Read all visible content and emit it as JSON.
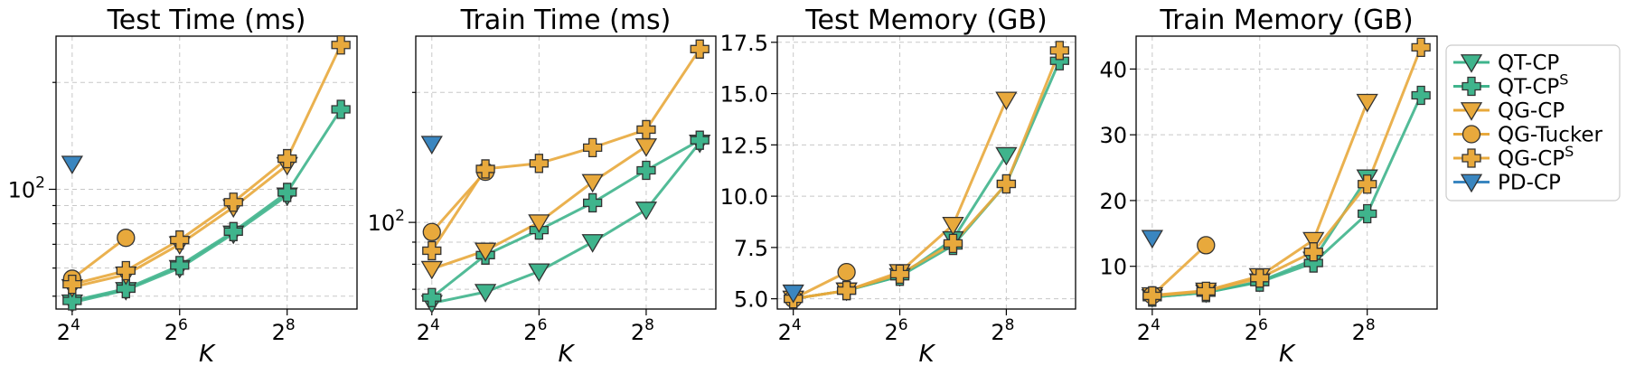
{
  "figure": {
    "colors": {
      "QT-CP": "#3fb48c",
      "QT-CP^S": "#3fb48c",
      "QG-CP": "#e8a93c",
      "QG-Tucker": "#e8a93c",
      "QG-CP^S": "#e8a93c",
      "PD-CP": "#3a86c0"
    },
    "legend": {
      "placement": "right",
      "entries": [
        {
          "key": "QT-CP",
          "base": "QT-CP",
          "sup": "",
          "marker": "triangle-down"
        },
        {
          "key": "QT-CP^S",
          "base": "QT-CP",
          "sup": "S",
          "marker": "plus"
        },
        {
          "key": "QG-CP",
          "base": "QG-CP",
          "sup": "",
          "marker": "triangle-down"
        },
        {
          "key": "QG-Tucker",
          "base": "QG-Tucker",
          "sup": "",
          "marker": "circle"
        },
        {
          "key": "QG-CP^S",
          "base": "QG-CP",
          "sup": "S",
          "marker": "plus"
        },
        {
          "key": "PD-CP",
          "base": "PD-CP",
          "sup": "",
          "marker": "triangle-down"
        }
      ]
    }
  },
  "chart_data": [
    {
      "type": "line",
      "title": "Test Time (ms)",
      "xlabel": "K",
      "ylabel": "",
      "yscale": "log",
      "ylim": [
        46,
        270
      ],
      "xticks": [
        {
          "base": "2",
          "exp": "4"
        },
        {
          "base": "2",
          "exp": "6"
        },
        {
          "base": "2",
          "exp": "8"
        }
      ],
      "yticks": [
        {
          "base": "10",
          "exp": "2",
          "value": 100
        }
      ],
      "grid": true,
      "series": [
        {
          "name": "QT-CP",
          "marker": "triangle-down",
          "x": [
            16,
            32,
            64,
            128,
            256
          ],
          "y": [
            48,
            52,
            60,
            75,
            96
          ]
        },
        {
          "name": "QT-CP^S",
          "marker": "plus",
          "x": [
            16,
            32,
            64,
            128,
            256,
            512
          ],
          "y": [
            48.5,
            52.5,
            61,
            76,
            98,
            168
          ]
        },
        {
          "name": "QG-CP",
          "marker": "triangle-down",
          "x": [
            16,
            32,
            64,
            128,
            256
          ],
          "y": [
            53,
            57.5,
            70,
            89,
            117
          ]
        },
        {
          "name": "QG-Tucker",
          "marker": "circle",
          "x": [
            16,
            32
          ],
          "y": [
            56,
            73
          ]
        },
        {
          "name": "QG-CP^S",
          "marker": "plus",
          "x": [
            16,
            32,
            64,
            128,
            256,
            512
          ],
          "y": [
            54,
            59,
            72,
            92,
            122,
            255
          ]
        },
        {
          "name": "PD-CP",
          "marker": "triangle-down",
          "x": [
            16
          ],
          "y": [
            118
          ]
        }
      ]
    },
    {
      "type": "line",
      "title": "Train Time (ms)",
      "xlabel": "K",
      "ylabel": "",
      "yscale": "log",
      "ylim": [
        63,
        270
      ],
      "xticks": [
        {
          "base": "2",
          "exp": "4"
        },
        {
          "base": "2",
          "exp": "6"
        },
        {
          "base": "2",
          "exp": "8"
        }
      ],
      "yticks": [
        {
          "base": "10",
          "exp": "2",
          "value": 100
        }
      ],
      "grid": true,
      "series": [
        {
          "name": "QT-CP",
          "marker": "triangle-down",
          "x": [
            16,
            32,
            64,
            128,
            256,
            512
          ],
          "y": [
            65,
            69,
            77,
            90,
            107,
            153
          ]
        },
        {
          "name": "QT-CP^S",
          "marker": "plus",
          "x": [
            16,
            32,
            64,
            128,
            256,
            512
          ],
          "y": [
            67,
            84,
            96,
            111,
            132,
            155
          ]
        },
        {
          "name": "QG-CP",
          "marker": "triangle-down",
          "x": [
            16,
            32,
            64,
            128,
            256
          ],
          "y": [
            78,
            86,
            100,
            124,
            150
          ]
        },
        {
          "name": "QG-Tucker",
          "marker": "circle",
          "x": [
            16,
            32
          ],
          "y": [
            95,
            131
          ]
        },
        {
          "name": "QG-CP^S",
          "marker": "plus",
          "x": [
            16,
            32,
            64,
            128,
            256,
            512
          ],
          "y": [
            86,
            133,
            137,
            149,
            164,
            252
          ]
        },
        {
          "name": "PD-CP",
          "marker": "triangle-down",
          "x": [
            16
          ],
          "y": [
            152
          ]
        }
      ]
    },
    {
      "type": "line",
      "title": "Test Memory (GB)",
      "xlabel": "K",
      "ylabel": "",
      "yscale": "linear",
      "ylim": [
        4.5,
        17.8
      ],
      "xticks": [
        {
          "base": "2",
          "exp": "4"
        },
        {
          "base": "2",
          "exp": "6"
        },
        {
          "base": "2",
          "exp": "8"
        }
      ],
      "yticks": [
        {
          "label": "5.0",
          "value": 5.0
        },
        {
          "label": "7.5",
          "value": 7.5
        },
        {
          "label": "10.0",
          "value": 10.0
        },
        {
          "label": "12.5",
          "value": 12.5
        },
        {
          "label": "15.0",
          "value": 15.0
        },
        {
          "label": "17.5",
          "value": 17.5
        }
      ],
      "grid": true,
      "series": [
        {
          "name": "QT-CP",
          "marker": "triangle-down",
          "x": [
            16,
            32,
            64,
            128,
            256
          ],
          "y": [
            5.0,
            5.4,
            6.1,
            7.9,
            12.0
          ]
        },
        {
          "name": "QT-CP^S",
          "marker": "plus",
          "x": [
            16,
            32,
            64,
            128,
            256,
            512
          ],
          "y": [
            5.0,
            5.4,
            6.1,
            7.6,
            10.6,
            16.6
          ]
        },
        {
          "name": "QG-CP",
          "marker": "triangle-down",
          "x": [
            16,
            32,
            64,
            128,
            256
          ],
          "y": [
            5.0,
            5.4,
            6.3,
            8.6,
            14.7
          ]
        },
        {
          "name": "QG-Tucker",
          "marker": "circle",
          "x": [
            16,
            32
          ],
          "y": [
            5.0,
            6.3
          ]
        },
        {
          "name": "QG-CP^S",
          "marker": "plus",
          "x": [
            16,
            32,
            64,
            128,
            256,
            512
          ],
          "y": [
            5.0,
            5.4,
            6.2,
            7.7,
            10.6,
            17.1
          ]
        },
        {
          "name": "PD-CP",
          "marker": "triangle-down",
          "x": [
            16
          ],
          "y": [
            5.3
          ]
        }
      ]
    },
    {
      "type": "line",
      "title": "Train Memory (GB)",
      "xlabel": "K",
      "ylabel": "",
      "yscale": "linear",
      "ylim": [
        3.5,
        45
      ],
      "xticks": [
        {
          "base": "2",
          "exp": "4"
        },
        {
          "base": "2",
          "exp": "6"
        },
        {
          "base": "2",
          "exp": "8"
        }
      ],
      "yticks": [
        {
          "label": "10",
          "value": 10
        },
        {
          "label": "20",
          "value": 20
        },
        {
          "label": "30",
          "value": 30
        },
        {
          "label": "40",
          "value": 40
        }
      ],
      "grid": true,
      "series": [
        {
          "name": "QT-CP",
          "marker": "triangle-down",
          "x": [
            16,
            32,
            64,
            128,
            256
          ],
          "y": [
            5.3,
            6.0,
            7.7,
            11.0,
            23.5
          ]
        },
        {
          "name": "QT-CP^S",
          "marker": "plus",
          "x": [
            16,
            32,
            64,
            128,
            256,
            512
          ],
          "y": [
            5.3,
            6.0,
            7.6,
            10.5,
            18.0,
            36.0
          ]
        },
        {
          "name": "QG-CP",
          "marker": "triangle-down",
          "x": [
            16,
            32,
            64,
            128,
            256
          ],
          "y": [
            5.6,
            6.3,
            8.5,
            14.0,
            35.0
          ]
        },
        {
          "name": "QG-Tucker",
          "marker": "circle",
          "x": [
            16,
            32
          ],
          "y": [
            5.6,
            13.2
          ]
        },
        {
          "name": "QG-CP^S",
          "marker": "plus",
          "x": [
            16,
            32,
            64,
            128,
            256,
            512
          ],
          "y": [
            5.5,
            6.2,
            8.2,
            12.2,
            22.5,
            43.3
          ]
        },
        {
          "name": "PD-CP",
          "marker": "triangle-down",
          "x": [
            16
          ],
          "y": [
            14.3
          ]
        }
      ]
    }
  ]
}
